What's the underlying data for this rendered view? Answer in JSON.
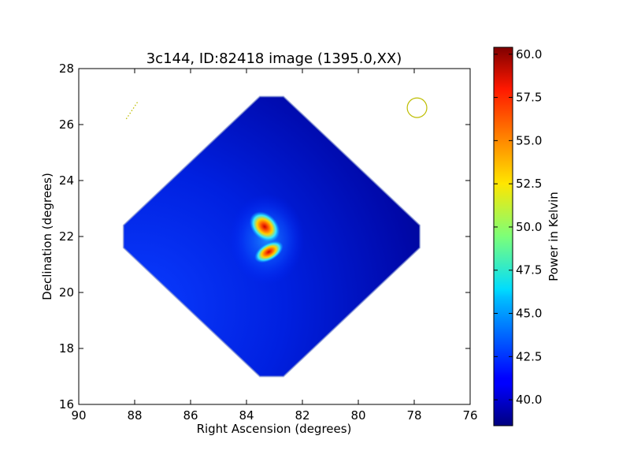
{
  "chart_data": {
    "type": "heatmap",
    "title": "3c144, ID:82418 image (1395.0,XX)",
    "xlabel": "Right Ascension (degrees)",
    "ylabel": "Declination (degrees)",
    "xlim": [
      90,
      76
    ],
    "ylim": [
      16,
      28
    ],
    "xticks": [
      90,
      88,
      86,
      84,
      82,
      80,
      78,
      76
    ],
    "yticks": [
      16,
      18,
      20,
      22,
      24,
      26,
      28
    ],
    "colormap": "jet",
    "colorbar": {
      "label": "Power in Kelvin",
      "range": [
        38.5,
        60.4
      ],
      "ticks": [
        40.0,
        42.5,
        45.0,
        47.5,
        50.0,
        52.5,
        55.0,
        57.5,
        60.0
      ],
      "tick_labels": [
        "40.0",
        "42.5",
        "45.0",
        "47.5",
        "50.0",
        "52.5",
        "55.0",
        "57.5",
        "60.0"
      ]
    },
    "map": {
      "shape": "rotated-square",
      "center": [
        83.1,
        22.0
      ],
      "half_width_ra": 5.3,
      "half_height_dec": 5.0,
      "background_range": [
        38.8,
        42.0
      ],
      "sources": [
        {
          "ra": 83.35,
          "dec": 22.35,
          "peak": 60.0,
          "label": "primary peak"
        },
        {
          "ra": 83.2,
          "dec": 21.45,
          "peak": 58.0,
          "label": "secondary peak"
        }
      ]
    },
    "annotations": [
      {
        "type": "circle",
        "ra": 77.9,
        "dec": 26.6,
        "radius_deg": 0.35,
        "color": "#bdbd00"
      },
      {
        "type": "dotted-line",
        "from": [
          88.3,
          26.2
        ],
        "to": [
          87.9,
          26.8
        ],
        "color": "#bdbd00"
      }
    ]
  }
}
